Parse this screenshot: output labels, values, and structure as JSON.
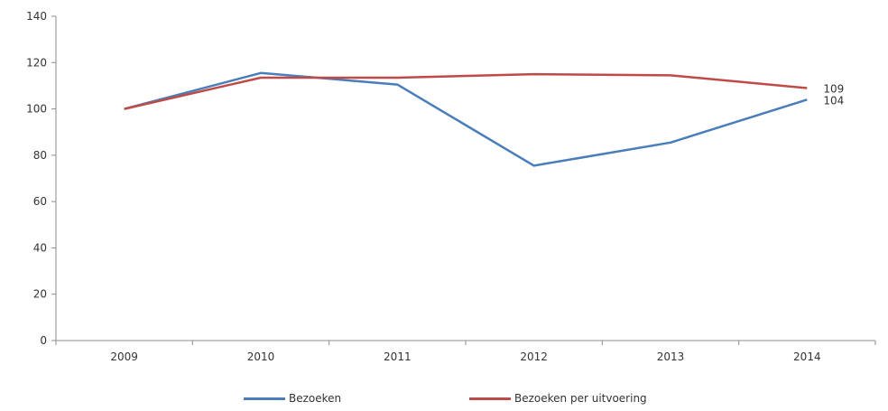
{
  "chart_data": {
    "type": "line",
    "title": "",
    "xlabel": "",
    "ylabel": "",
    "categories": [
      "2009",
      "2010",
      "2011",
      "2012",
      "2013",
      "2014"
    ],
    "ylim": [
      0,
      140
    ],
    "yticks": [
      "0",
      "20",
      "40",
      "60",
      "80",
      "100",
      "120",
      "140"
    ],
    "grid": false,
    "legend_position": "bottom",
    "series": [
      {
        "name": "Bezoeken",
        "color": "#4a7ebb",
        "values": [
          100,
          115.5,
          110.5,
          75.5,
          85.5,
          104
        ],
        "end_label": "104"
      },
      {
        "name": "Bezoeken per uitvoering",
        "color": "#be4b48",
        "values": [
          100,
          113.5,
          113.5,
          115,
          114.5,
          109
        ],
        "end_label": "109"
      }
    ]
  }
}
